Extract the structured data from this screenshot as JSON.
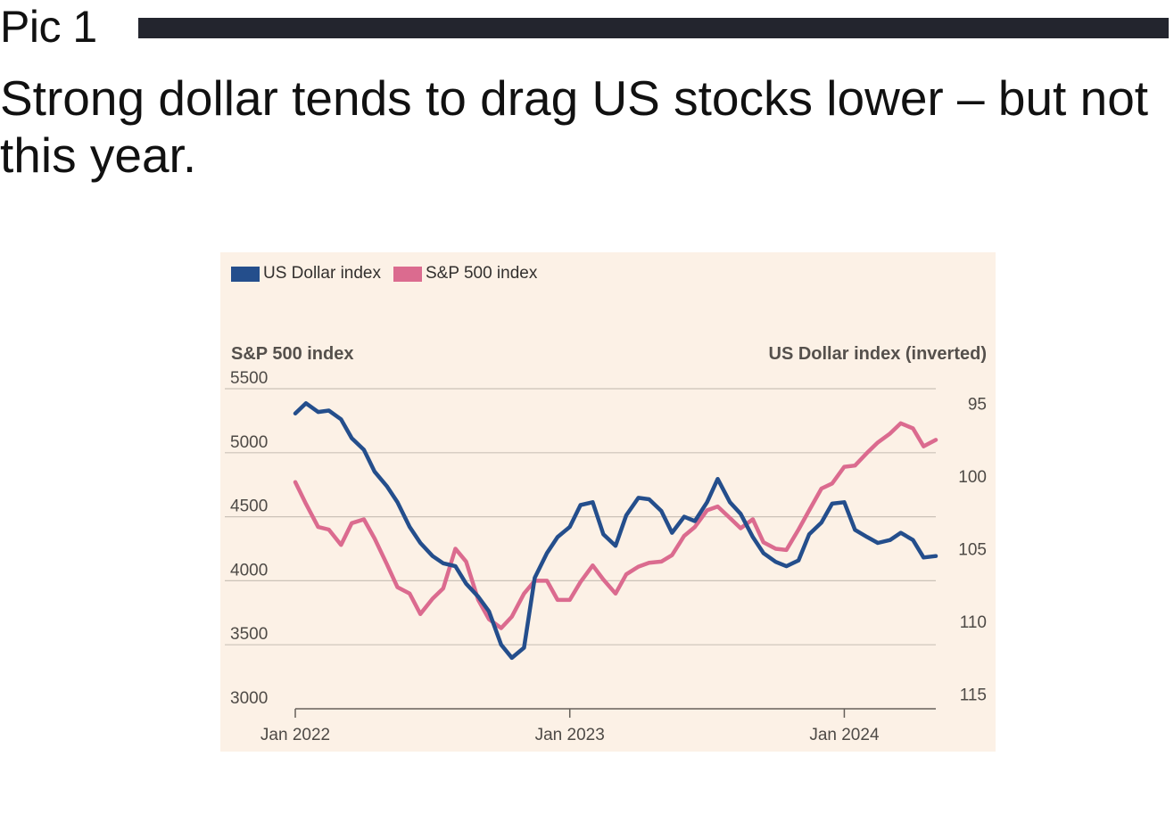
{
  "header": {
    "pic_label": "Pic 1",
    "headline": "Strong dollar tends to drag US stocks lower – but not this year."
  },
  "colors": {
    "usd": "#244e8c",
    "spx": "#db6b8f",
    "panel": "#fcf1e6",
    "grid": "#cbc2b8"
  },
  "chart_data": {
    "type": "line",
    "legend": [
      {
        "name": "US Dollar index",
        "color": "#244e8c"
      },
      {
        "name": "S&P 500 index",
        "color": "#db6b8f"
      }
    ],
    "left_axis": {
      "title": "S&P 500 index",
      "ticks": [
        5500,
        5000,
        4500,
        4000,
        3500,
        3000
      ],
      "range": [
        3000,
        5500
      ]
    },
    "right_axis": {
      "title": "US Dollar index (inverted)",
      "ticks": [
        95,
        100,
        105,
        110,
        115
      ],
      "range": [
        94,
        116
      ],
      "inverted": true
    },
    "x_ticks": [
      {
        "label": "Jan 2022",
        "date": "2022-01"
      },
      {
        "label": "Jan 2023",
        "date": "2023-01"
      },
      {
        "label": "Jan 2024",
        "date": "2024-01"
      }
    ],
    "x_range": [
      "2022-01",
      "2024-05"
    ],
    "series": [
      {
        "name": "US Dollar index",
        "axis": "right",
        "x": [
          "2022-01",
          "2022-01-15",
          "2022-02",
          "2022-02-15",
          "2022-03",
          "2022-03-15",
          "2022-04",
          "2022-04-15",
          "2022-05",
          "2022-05-15",
          "2022-06",
          "2022-06-15",
          "2022-07",
          "2022-07-15",
          "2022-08",
          "2022-08-15",
          "2022-09",
          "2022-09-15",
          "2022-10",
          "2022-10-15",
          "2022-11",
          "2022-11-15",
          "2022-12",
          "2022-12-15",
          "2023-01",
          "2023-01-15",
          "2023-02",
          "2023-02-15",
          "2023-03",
          "2023-03-15",
          "2023-04",
          "2023-04-15",
          "2023-05",
          "2023-05-15",
          "2023-06",
          "2023-06-15",
          "2023-07",
          "2023-07-15",
          "2023-08",
          "2023-08-15",
          "2023-09",
          "2023-09-15",
          "2023-10",
          "2023-10-15",
          "2023-11",
          "2023-11-15",
          "2023-12",
          "2023-12-15",
          "2024-01",
          "2024-01-15",
          "2024-02",
          "2024-02-15",
          "2024-03",
          "2024-03-15",
          "2024-04",
          "2024-04-15",
          "2024-05"
        ],
        "values": [
          95.7,
          95.0,
          95.6,
          95.5,
          96.1,
          97.4,
          98.2,
          99.7,
          100.7,
          101.8,
          103.5,
          104.6,
          105.5,
          106.0,
          106.2,
          107.4,
          108.3,
          109.3,
          111.6,
          112.5,
          111.8,
          107.0,
          105.3,
          104.2,
          103.5,
          102.0,
          101.8,
          104.0,
          104.8,
          102.7,
          101.5,
          101.6,
          102.4,
          103.9,
          102.8,
          103.1,
          101.8,
          100.2,
          101.8,
          102.6,
          104.2,
          105.3,
          105.9,
          106.2,
          105.8,
          104.0,
          103.2,
          101.9,
          101.8,
          103.7,
          104.2,
          104.6,
          104.4,
          103.9,
          104.4,
          105.6,
          105.5
        ]
      },
      {
        "name": "S&P 500 index",
        "axis": "left",
        "x": [
          "2022-01",
          "2022-01-15",
          "2022-02",
          "2022-02-15",
          "2022-03",
          "2022-03-15",
          "2022-04",
          "2022-04-15",
          "2022-05",
          "2022-05-15",
          "2022-06",
          "2022-06-15",
          "2022-07",
          "2022-07-15",
          "2022-08",
          "2022-08-15",
          "2022-09",
          "2022-09-15",
          "2022-10",
          "2022-10-15",
          "2022-11",
          "2022-11-15",
          "2022-12",
          "2022-12-15",
          "2023-01",
          "2023-01-15",
          "2023-02",
          "2023-02-15",
          "2023-03",
          "2023-03-15",
          "2023-04",
          "2023-04-15",
          "2023-05",
          "2023-05-15",
          "2023-06",
          "2023-06-15",
          "2023-07",
          "2023-07-15",
          "2023-08",
          "2023-08-15",
          "2023-09",
          "2023-09-15",
          "2023-10",
          "2023-10-15",
          "2023-11",
          "2023-11-15",
          "2023-12",
          "2023-12-15",
          "2024-01",
          "2024-01-15",
          "2024-02",
          "2024-02-15",
          "2024-03",
          "2024-03-15",
          "2024-04",
          "2024-04-15",
          "2024-05"
        ],
        "values": [
          4770,
          4600,
          4420,
          4400,
          4280,
          4450,
          4480,
          4330,
          4130,
          3950,
          3900,
          3740,
          3860,
          3940,
          4250,
          4150,
          3850,
          3700,
          3630,
          3720,
          3900,
          4000,
          4000,
          3850,
          3850,
          3990,
          4120,
          4010,
          3900,
          4050,
          4110,
          4140,
          4150,
          4200,
          4350,
          4420,
          4550,
          4580,
          4490,
          4410,
          4480,
          4300,
          4250,
          4240,
          4400,
          4550,
          4720,
          4760,
          4890,
          4900,
          5000,
          5080,
          5150,
          5230,
          5190,
          5050,
          5100
        ]
      }
    ]
  }
}
